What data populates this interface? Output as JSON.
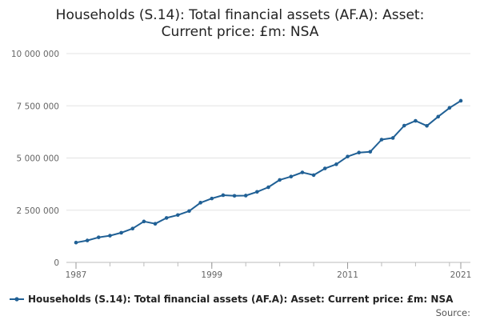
{
  "chart_data": {
    "type": "line",
    "title_lines": [
      "Households (S.14): Total financial assets (AF.A): Asset:",
      "Current price: £m: NSA"
    ],
    "xlabel": "",
    "ylabel": "",
    "xlim": [
      1987,
      2021
    ],
    "ylim": [
      0,
      10000000
    ],
    "x_ticks": [
      1987,
      1999,
      2011,
      2021
    ],
    "x_tick_labels": [
      "1987",
      "1999",
      "2011",
      "2021"
    ],
    "y_ticks": [
      0,
      2500000,
      5000000,
      7500000,
      10000000
    ],
    "y_tick_labels": [
      "0",
      "2 500 000",
      "5 000 000",
      "7 500 000",
      "10 000 000"
    ],
    "grid": "horizontal",
    "legend_position": "bottom",
    "color": "#206095",
    "series": [
      {
        "name": "Households (S.14): Total financial assets (AF.A): Asset: Current price: £m: NSA",
        "x": [
          1987,
          1988,
          1989,
          1990,
          1991,
          1992,
          1993,
          1994,
          1995,
          1996,
          1997,
          1998,
          1999,
          2000,
          2001,
          2002,
          2003,
          2004,
          2005,
          2006,
          2007,
          2008,
          2009,
          2010,
          2011,
          2012,
          2013,
          2014,
          2015,
          2016,
          2017,
          2018,
          2019,
          2020,
          2021
        ],
        "values": [
          950000,
          1050000,
          1200000,
          1280000,
          1420000,
          1620000,
          1960000,
          1850000,
          2130000,
          2270000,
          2460000,
          2860000,
          3060000,
          3220000,
          3190000,
          3200000,
          3380000,
          3600000,
          3950000,
          4110000,
          4310000,
          4180000,
          4500000,
          4700000,
          5070000,
          5260000,
          5300000,
          5880000,
          5960000,
          6550000,
          6780000,
          6540000,
          6980000,
          7400000,
          7740000
        ]
      }
    ]
  },
  "source_label": "Source:"
}
